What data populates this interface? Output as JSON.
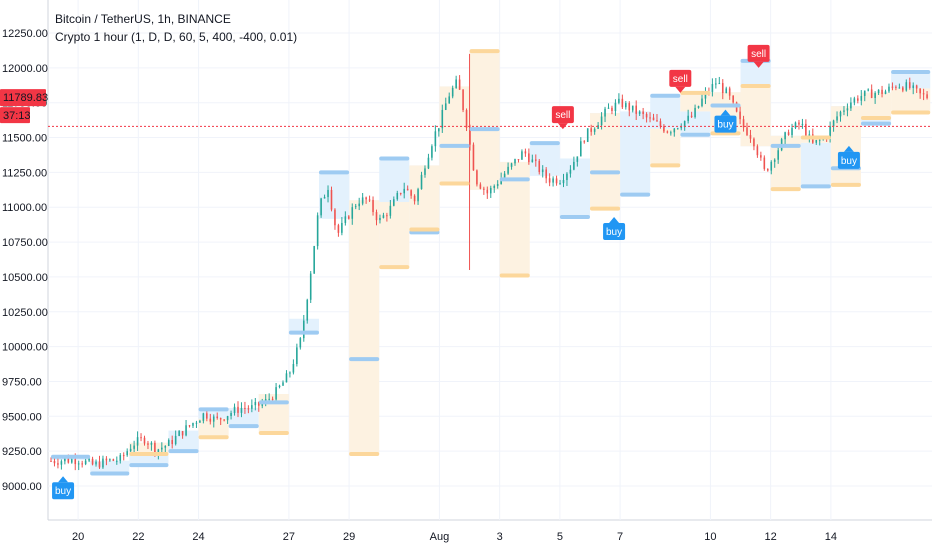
{
  "header": {
    "title": "Bitcoin / TetherUS, 1h, BINANCE",
    "indicator": "Crypto 1 hour (1, D, D, 60, 5, 400, -400, 0.01)"
  },
  "price_marker": {
    "value": "11789.83",
    "countdown": "37:13"
  },
  "colors": {
    "up": "#26a69a",
    "down": "#ef5350",
    "blue_level": "#9ecbf2",
    "orange_level": "#fcd79b",
    "blue_fill": "#e3f1fd",
    "orange_fill": "#fdf2e1",
    "buy": "#2196f3",
    "sell": "#f23645",
    "hline": "#f23645"
  },
  "chart_data": {
    "type": "candlestick",
    "title": "Bitcoin / TetherUS, 1h, BINANCE",
    "ylim": [
      8800,
      12400
    ],
    "y_ticks": [
      "9000.00",
      "9250.00",
      "9500.00",
      "9750.00",
      "10000.00",
      "10250.00",
      "10500.00",
      "10750.00",
      "11000.00",
      "11250.00",
      "11500.00",
      "11750.00",
      "12000.00",
      "12250.00"
    ],
    "x_ticks": [
      {
        "label": "20",
        "day": 20
      },
      {
        "label": "22",
        "day": 22
      },
      {
        "label": "24",
        "day": 24
      },
      {
        "label": "27",
        "day": 27
      },
      {
        "label": "29",
        "day": 29
      },
      {
        "label": "Aug",
        "day": 32
      },
      {
        "label": "3",
        "day": 34
      },
      {
        "label": "5",
        "day": 36
      },
      {
        "label": "7",
        "day": 38
      },
      {
        "label": "10",
        "day": 41
      },
      {
        "label": "12",
        "day": 43
      },
      {
        "label": "14",
        "day": 45
      }
    ],
    "x_range": [
      19,
      48.3
    ],
    "horizontal_line": 11580,
    "price_path": [
      [
        19.1,
        9180
      ],
      [
        20.0,
        9190
      ],
      [
        20.5,
        9150
      ],
      [
        21.0,
        9180
      ],
      [
        21.4,
        9190
      ],
      [
        21.8,
        9300
      ],
      [
        22.2,
        9340
      ],
      [
        22.6,
        9260
      ],
      [
        23.0,
        9300
      ],
      [
        23.4,
        9380
      ],
      [
        23.8,
        9450
      ],
      [
        24.2,
        9520
      ],
      [
        24.6,
        9470
      ],
      [
        25.0,
        9520
      ],
      [
        25.4,
        9560
      ],
      [
        25.8,
        9560
      ],
      [
        26.2,
        9600
      ],
      [
        26.6,
        9680
      ],
      [
        27.0,
        9800
      ],
      [
        27.4,
        10050
      ],
      [
        27.7,
        10500
      ],
      [
        28.0,
        11000
      ],
      [
        28.3,
        11150
      ],
      [
        28.6,
        10800
      ],
      [
        29.0,
        10950
      ],
      [
        29.3,
        11050
      ],
      [
        29.6,
        11050
      ],
      [
        30.0,
        10900
      ],
      [
        30.4,
        11000
      ],
      [
        30.8,
        11150
      ],
      [
        31.2,
        11050
      ],
      [
        31.5,
        11300
      ],
      [
        31.8,
        11500
      ],
      [
        32.0,
        11600
      ],
      [
        32.3,
        11800
      ],
      [
        32.6,
        11900
      ],
      [
        32.9,
        11600
      ],
      [
        33.2,
        11200
      ],
      [
        33.6,
        11100
      ],
      [
        34.0,
        11200
      ],
      [
        34.4,
        11300
      ],
      [
        34.8,
        11400
      ],
      [
        35.2,
        11300
      ],
      [
        35.6,
        11200
      ],
      [
        36.0,
        11200
      ],
      [
        36.4,
        11300
      ],
      [
        36.8,
        11500
      ],
      [
        37.2,
        11600
      ],
      [
        37.6,
        11700
      ],
      [
        38.0,
        11750
      ],
      [
        38.4,
        11700
      ],
      [
        38.8,
        11650
      ],
      [
        39.2,
        11600
      ],
      [
        39.6,
        11550
      ],
      [
        40.0,
        11600
      ],
      [
        40.4,
        11650
      ],
      [
        40.8,
        11800
      ],
      [
        41.2,
        11900
      ],
      [
        41.6,
        11800
      ],
      [
        42.0,
        11600
      ],
      [
        42.4,
        11500
      ],
      [
        42.8,
        11250
      ],
      [
        43.2,
        11400
      ],
      [
        43.6,
        11550
      ],
      [
        44.0,
        11600
      ],
      [
        44.4,
        11450
      ],
      [
        44.8,
        11500
      ],
      [
        45.2,
        11650
      ],
      [
        45.6,
        11750
      ],
      [
        46.0,
        11800
      ],
      [
        46.4,
        11820
      ],
      [
        46.8,
        11830
      ],
      [
        47.2,
        11880
      ],
      [
        47.6,
        11860
      ],
      [
        48.0,
        11800
      ],
      [
        48.3,
        11790
      ]
    ],
    "spikes": [
      {
        "day": 33.0,
        "high": 12100,
        "low": 10550
      }
    ],
    "blue_levels": [
      [
        19.1,
        20.4,
        9210
      ],
      [
        20.4,
        21.7,
        9090
      ],
      [
        21.7,
        23.0,
        9150
      ],
      [
        23.0,
        24.0,
        9250
      ],
      [
        24.0,
        25.0,
        9550
      ],
      [
        25.0,
        26.0,
        9430
      ],
      [
        26.0,
        27.0,
        9600
      ],
      [
        27.0,
        28.0,
        10100
      ],
      [
        28.0,
        29.0,
        11250
      ],
      [
        29.0,
        30.0,
        9910
      ],
      [
        30.0,
        31.0,
        11350
      ],
      [
        31.0,
        32.0,
        10820
      ],
      [
        32.0,
        33.0,
        11440
      ],
      [
        33.0,
        34.0,
        11560
      ],
      [
        34.0,
        35.0,
        11200
      ],
      [
        35.0,
        36.0,
        11460
      ],
      [
        36.0,
        37.0,
        10930
      ],
      [
        37.0,
        38.0,
        11250
      ],
      [
        38.0,
        39.0,
        11090
      ],
      [
        39.0,
        40.0,
        11800
      ],
      [
        40.0,
        41.0,
        11520
      ],
      [
        41.0,
        42.0,
        11730
      ],
      [
        42.0,
        43.0,
        12050
      ],
      [
        43.0,
        44.0,
        11440
      ],
      [
        44.0,
        45.0,
        11150
      ],
      [
        45.0,
        46.0,
        11280
      ],
      [
        46.0,
        47.0,
        11600
      ],
      [
        47.0,
        48.3,
        11970
      ]
    ],
    "orange_levels": [
      [
        21.7,
        23.0,
        9230
      ],
      [
        24.0,
        25.0,
        9350
      ],
      [
        26.0,
        27.0,
        9380
      ],
      [
        29.0,
        30.0,
        9230
      ],
      [
        30.0,
        31.0,
        10570
      ],
      [
        31.0,
        32.0,
        10840
      ],
      [
        32.0,
        33.0,
        11170
      ],
      [
        33.0,
        34.0,
        12120
      ],
      [
        34.0,
        35.0,
        10510
      ],
      [
        37.0,
        38.0,
        10990
      ],
      [
        39.0,
        40.0,
        11300
      ],
      [
        40.0,
        41.0,
        11820
      ],
      [
        41.0,
        42.0,
        11530
      ],
      [
        42.0,
        43.0,
        11870
      ],
      [
        43.0,
        44.0,
        11130
      ],
      [
        44.0,
        45.0,
        11500
      ],
      [
        45.0,
        46.0,
        11160
      ],
      [
        46.0,
        47.0,
        11640
      ],
      [
        47.0,
        48.3,
        11680
      ]
    ],
    "signals": [
      {
        "type": "buy",
        "label": "buy",
        "day": 19.5,
        "price": 9070
      },
      {
        "type": "sell",
        "label": "sell",
        "day": 36.1,
        "price": 11560
      },
      {
        "type": "buy",
        "label": "buy",
        "day": 37.8,
        "price": 10930
      },
      {
        "type": "sell",
        "label": "sell",
        "day": 40.0,
        "price": 11820
      },
      {
        "type": "buy",
        "label": "buy",
        "day": 41.5,
        "price": 11700
      },
      {
        "type": "sell",
        "label": "sell",
        "day": 42.6,
        "price": 12000
      },
      {
        "type": "buy",
        "label": "buy",
        "day": 45.6,
        "price": 11440
      }
    ]
  }
}
